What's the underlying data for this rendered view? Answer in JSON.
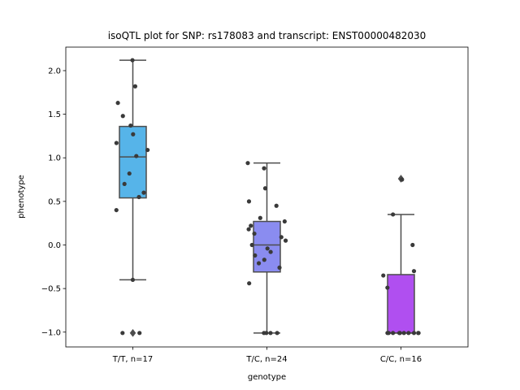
{
  "chart_data": {
    "type": "box",
    "title": "isoQTL plot for SNP: rs178083 and transcript: ENST00000482030",
    "xlabel": "genotype",
    "ylabel": "phenotype",
    "ylim": [
      -1.17,
      2.27
    ],
    "yticks": [
      -1.0,
      -0.5,
      0.0,
      0.5,
      1.0,
      1.5,
      2.0
    ],
    "ytick_labels": [
      "−1.0",
      "−0.5",
      "0.0",
      "0.5",
      "1.0",
      "1.5",
      "2.0"
    ],
    "grid": false,
    "categories": [
      "T/T, n=17",
      "T/C, n=24",
      "C/C, n=16"
    ],
    "groups": [
      {
        "label": "T/T, n=17",
        "color": "#56b4e9",
        "q1": 0.54,
        "median": 1.01,
        "q3": 1.36,
        "whisker_low": -0.4,
        "whisker_high": 2.12,
        "outliers": [
          -1.01
        ],
        "points": [
          2.12,
          1.82,
          1.63,
          1.48,
          1.37,
          1.27,
          1.17,
          1.09,
          1.02,
          0.82,
          0.7,
          0.6,
          0.55,
          0.4,
          -0.4,
          -1.01,
          -1.01
        ]
      },
      {
        "label": "T/C, n=24",
        "color": "#8a8cf0",
        "q1": -0.31,
        "median": 0.0,
        "q3": 0.27,
        "whisker_low": -1.01,
        "whisker_high": 0.94,
        "outliers": [],
        "points": [
          0.94,
          0.88,
          0.65,
          0.5,
          0.45,
          0.31,
          0.27,
          0.22,
          0.18,
          0.13,
          0.09,
          0.05,
          0.0,
          -0.04,
          -0.08,
          -0.12,
          -0.17,
          -0.21,
          -0.26,
          -0.44,
          -1.01,
          -1.01,
          -1.01,
          -1.01
        ]
      },
      {
        "label": "C/C, n=16",
        "color": "#b04ff0",
        "q1": -1.01,
        "median": -1.01,
        "q3": -0.34,
        "whisker_low": -1.01,
        "whisker_high": 0.35,
        "outliers": [
          0.76
        ],
        "points": [
          0.75,
          0.35,
          0.0,
          -0.3,
          -0.35,
          -0.49,
          -1.01,
          -1.01,
          -1.01,
          -1.01,
          -1.01,
          -1.01,
          -1.01,
          -1.01,
          -1.01,
          -1.01
        ]
      }
    ]
  }
}
